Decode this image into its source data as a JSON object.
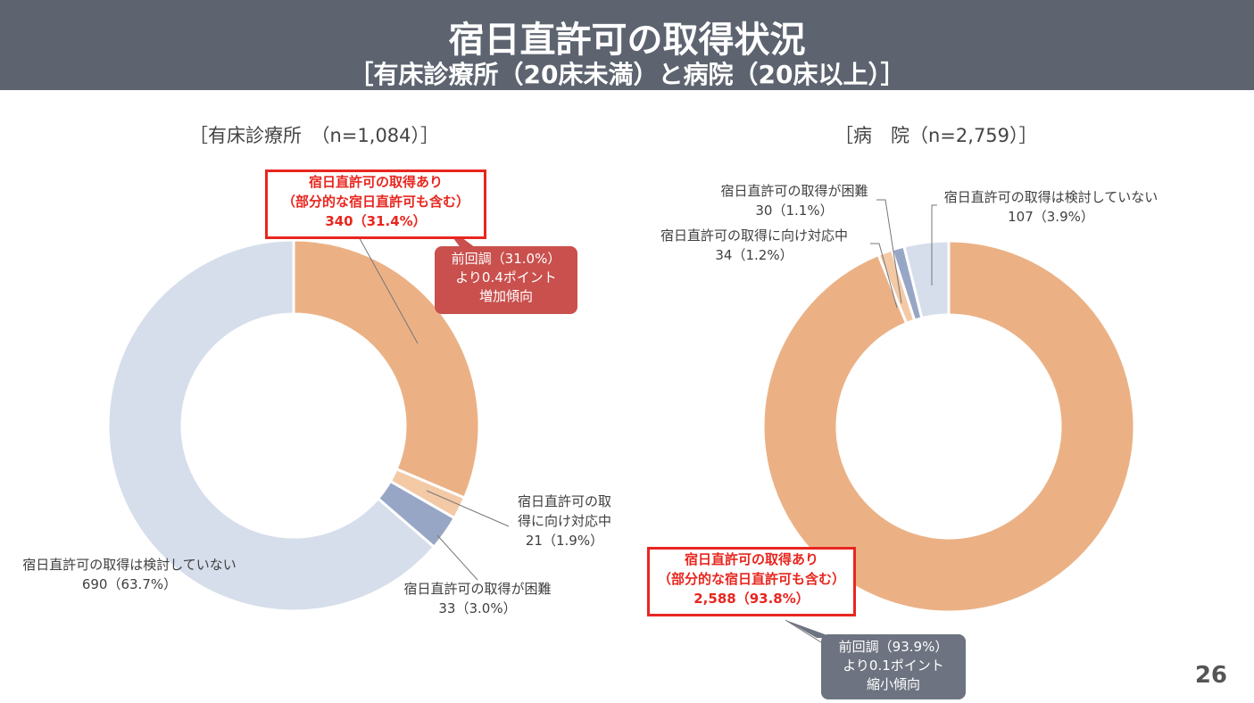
{
  "header": {
    "title": "宿日直許可の取得状況",
    "subtitle": "［有床診療所（20床未満）と病院（20床以上）］"
  },
  "colors": {
    "header": "#5d6470",
    "acquired": "#ebb185",
    "in_progress": "#f3c9a6",
    "difficult": "#98a6c6",
    "not_considered": "#d6deeb",
    "highlight": "#e8261f",
    "callout_up": "#c9504d",
    "callout_down": "#6d7380"
  },
  "chart_data": [
    {
      "type": "pie",
      "donut": true,
      "title": "［有床診療所　（n=1,084）］",
      "slices": [
        {
          "label_lines": [
            "宿日直許可の取得あり",
            "（部分的な宿日直許可も含む）"
          ],
          "value": 340,
          "percent": 31.4,
          "value_text": "340（31.4%）",
          "color": "#ebb185"
        },
        {
          "label_lines": [
            "宿日直許可の取",
            "得に向け対応中"
          ],
          "value": 21,
          "percent": 1.9,
          "value_text": "21（1.9%）",
          "color": "#f3c9a6"
        },
        {
          "label_lines": [
            "宿日直許可の取得が困難"
          ],
          "value": 33,
          "percent": 3.0,
          "value_text": "33（3.0%）",
          "color": "#98a6c6"
        },
        {
          "label_lines": [
            "宿日直許可の取得は検討していない"
          ],
          "value": 690,
          "percent": 63.7,
          "value_text": "690（63.7%）",
          "color": "#d6deeb"
        }
      ],
      "callout": [
        "前回調（31.0%）",
        "より0.4ポイント",
        "増加傾向"
      ]
    },
    {
      "type": "pie",
      "donut": true,
      "title": "［病　院（n=2,759）］",
      "slices": [
        {
          "label_lines": [
            "宿日直許可の取得あり",
            "（部分的な宿日直許可も含む）"
          ],
          "value": 2588,
          "percent": 93.8,
          "value_text": "2,588（93.8%）",
          "color": "#ebb185"
        },
        {
          "label_lines": [
            "宿日直許可の取得に向け対応中"
          ],
          "value": 34,
          "percent": 1.2,
          "value_text": "34（1.2%）",
          "color": "#f3c9a6"
        },
        {
          "label_lines": [
            "宿日直許可の取得が困難"
          ],
          "value": 30,
          "percent": 1.1,
          "value_text": "30（1.1%）",
          "color": "#98a6c6"
        },
        {
          "label_lines": [
            "宿日直許可の取得は検討していない"
          ],
          "value": 107,
          "percent": 3.9,
          "value_text": "107（3.9%）",
          "color": "#d6deeb"
        }
      ],
      "callout": [
        "前回調（93.9%）",
        "より0.1ポイント",
        "縮小傾向"
      ]
    }
  ],
  "page_number": "26"
}
